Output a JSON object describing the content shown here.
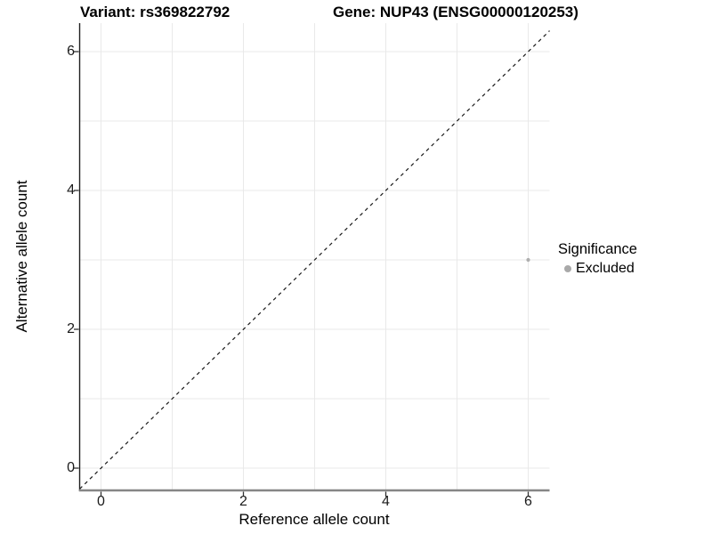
{
  "chart_data": {
    "type": "scatter",
    "title_left": "Variant: rs369822792",
    "title_right": "Gene: NUP43 (ENSG00000120253)",
    "xlabel": "Reference allele count",
    "ylabel": "Alternative allele count",
    "x_ticks": [
      0,
      2,
      4,
      6
    ],
    "y_ticks": [
      0,
      2,
      4,
      6
    ],
    "xlim": [
      -0.3,
      6.3
    ],
    "ylim": [
      -0.32,
      6.41
    ],
    "grid": "light gray gridline every 1 unit, white background",
    "legend_position": "right",
    "points": [
      {
        "x": 6,
        "y": 3,
        "significance": "Excluded",
        "color": "#aeaeae"
      }
    ],
    "reference_line": {
      "slope": 1,
      "intercept": 0,
      "style": "dashed",
      "color": "#1a1a1a"
    },
    "legend": {
      "title": "Significance",
      "items": [
        {
          "label": "Excluded",
          "color": "#a9a9a9"
        }
      ]
    }
  }
}
